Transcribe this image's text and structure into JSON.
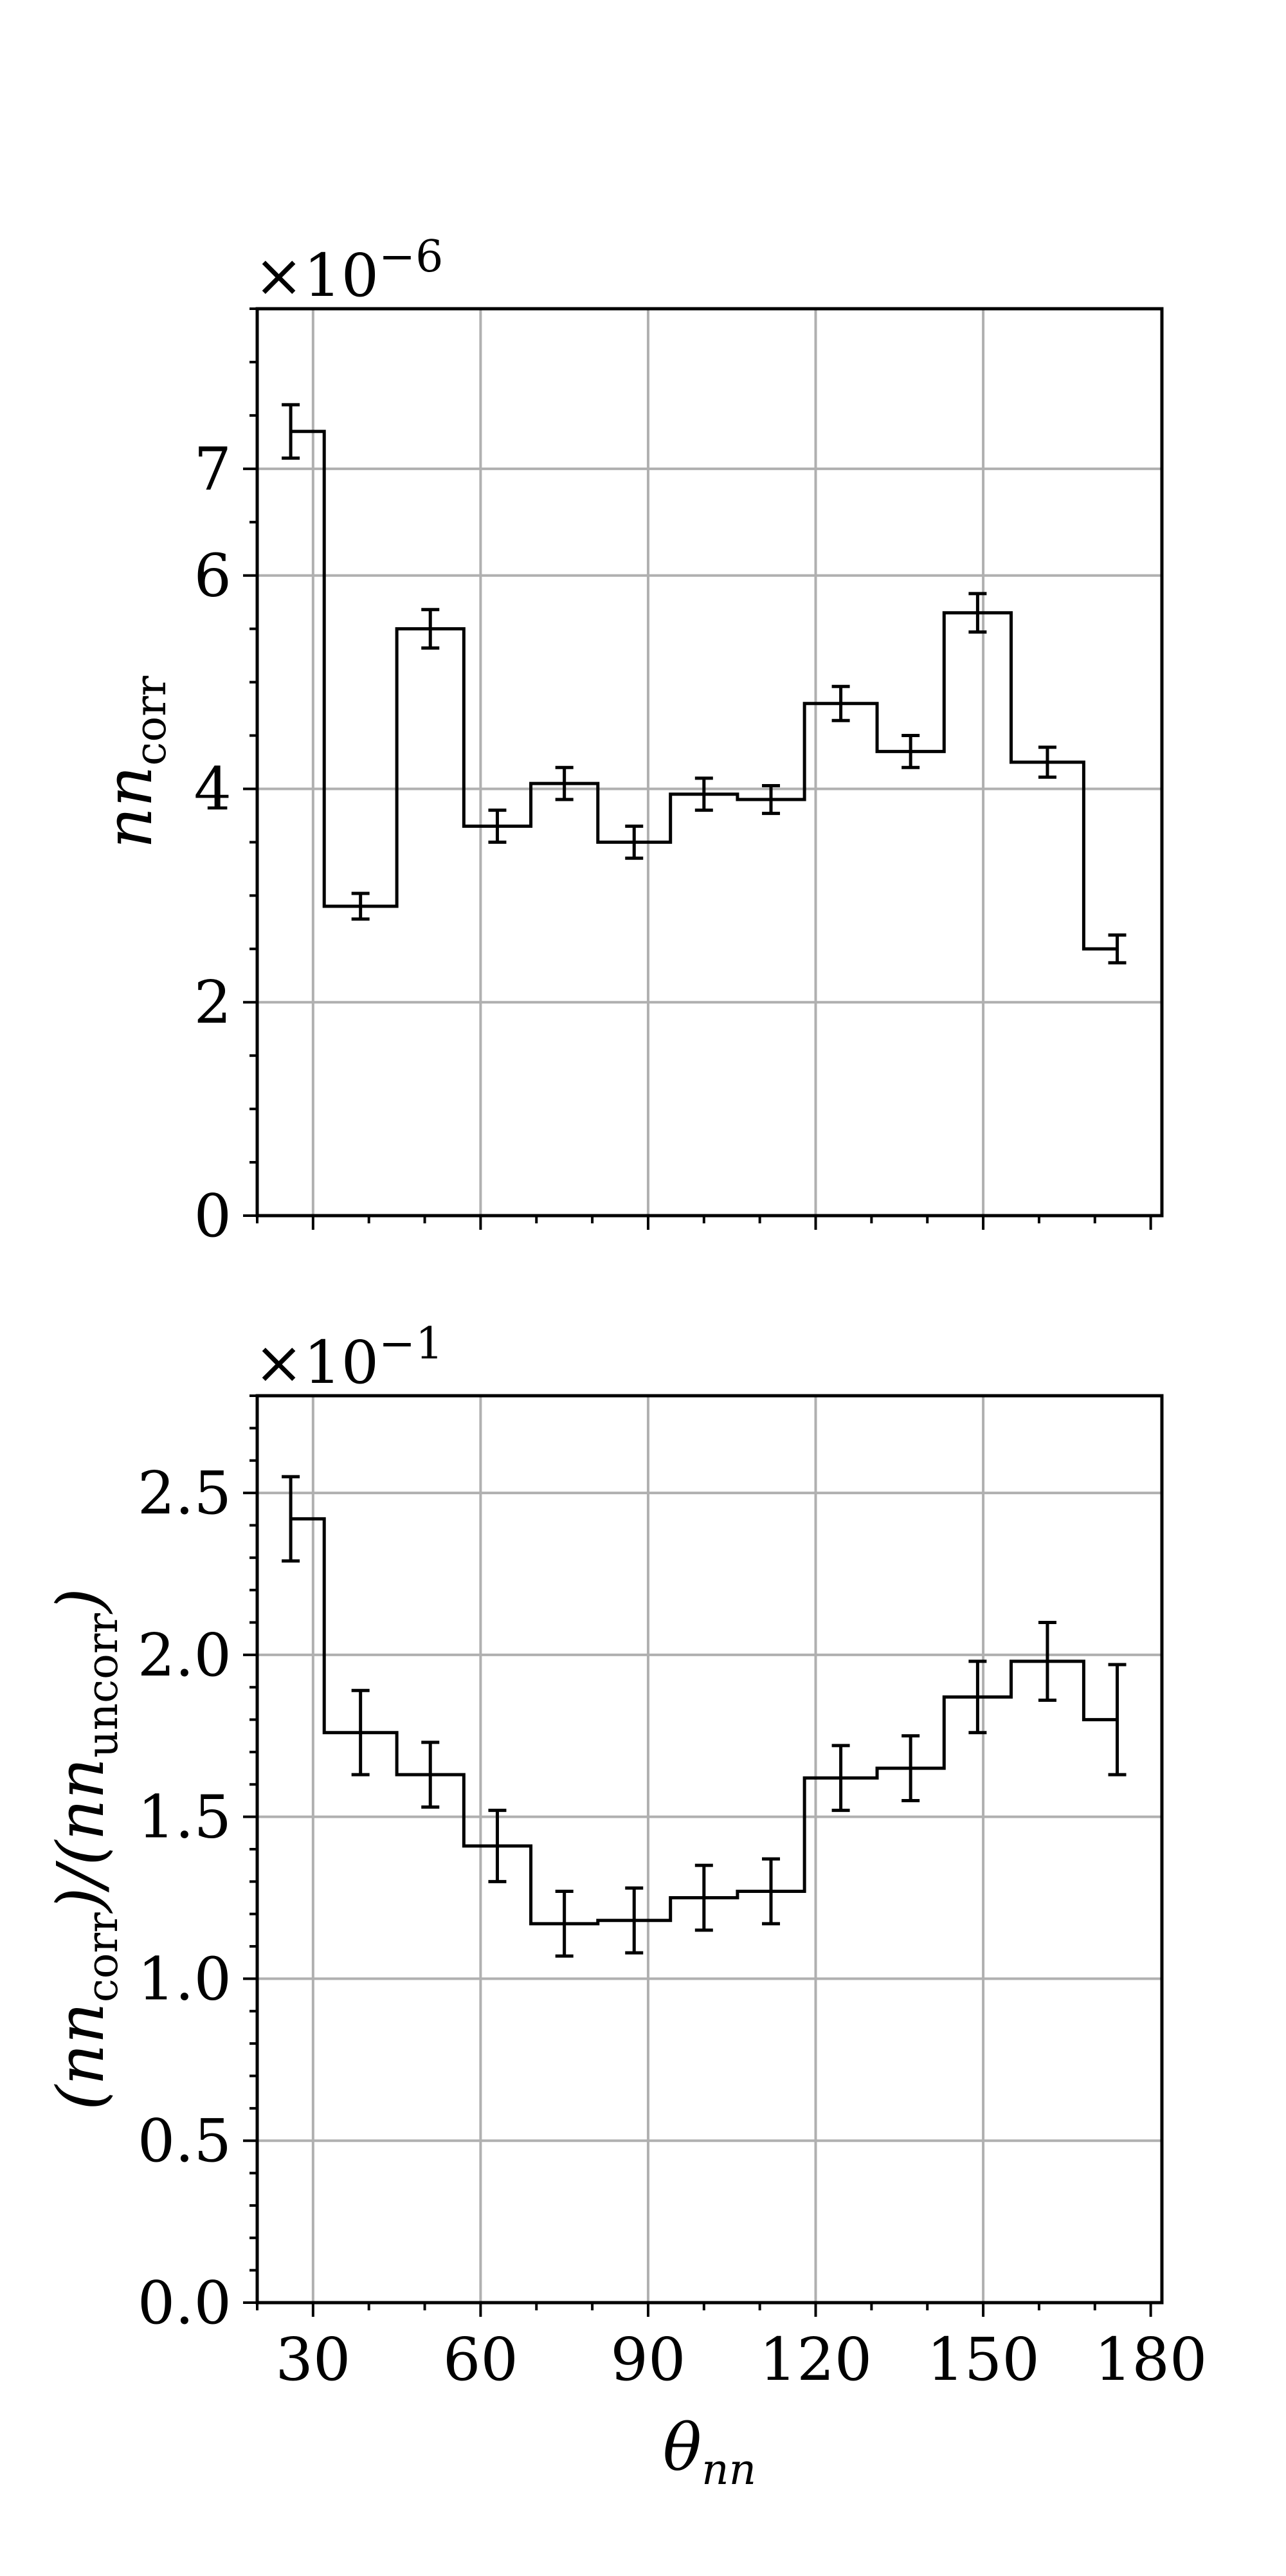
{
  "chart_data": [
    {
      "type": "line",
      "drawstyle": "steps",
      "xlabel": "",
      "ylabel": "nn_corr",
      "ylabel_main": "nn",
      "ylabel_sub": "corr",
      "multiplier_label": "×10",
      "multiplier_exp": "−6",
      "grid": true,
      "xlim": [
        20,
        182
      ],
      "ylim": [
        0,
        8.5
      ],
      "xticks": [
        30,
        60,
        90,
        120,
        150,
        180
      ],
      "yticks": [
        0,
        2,
        4,
        6,
        7
      ],
      "ytick_labels": [
        "0",
        "2",
        "4",
        "6",
        "7"
      ],
      "ygrid": [
        2,
        4,
        6,
        7
      ],
      "bin_edges": [
        26,
        32,
        45,
        57,
        69,
        81,
        94,
        106,
        118,
        131,
        143,
        155,
        168,
        174
      ],
      "x": [
        26,
        38.5,
        51,
        63,
        75,
        87.5,
        100,
        112,
        124.5,
        137,
        149,
        161.5,
        174
      ],
      "values": [
        7.35,
        2.9,
        5.5,
        3.65,
        4.05,
        3.5,
        3.95,
        3.9,
        4.8,
        4.35,
        5.65,
        4.25,
        2.5
      ],
      "errors": [
        0.25,
        0.12,
        0.18,
        0.15,
        0.15,
        0.15,
        0.15,
        0.13,
        0.16,
        0.15,
        0.18,
        0.14,
        0.13
      ]
    },
    {
      "type": "line",
      "drawstyle": "steps",
      "xlabel": "θ_nn",
      "xlabel_main": "θ",
      "xlabel_sub": "nn",
      "ylabel": "(nn_corr)/(nn_uncorr)",
      "ylabel_parts": [
        "(nn",
        "corr",
        ")/(nn",
        "uncorr",
        ")"
      ],
      "multiplier_label": "×10",
      "multiplier_exp": "−1",
      "grid": true,
      "xlim": [
        20,
        182
      ],
      "ylim": [
        0,
        2.8
      ],
      "xticks": [
        30,
        60,
        90,
        120,
        150,
        180
      ],
      "xtick_labels": [
        "30",
        "60",
        "90",
        "120",
        "150",
        "180"
      ],
      "yticks": [
        0,
        0.5,
        1.0,
        1.5,
        2.0,
        2.5
      ],
      "ytick_labels": [
        "0.0",
        "0.5",
        "1.0",
        "1.5",
        "2.0",
        "2.5"
      ],
      "ygrid": [
        0.5,
        1.0,
        1.5,
        2.0,
        2.5
      ],
      "bin_edges": [
        26,
        32,
        45,
        57,
        69,
        81,
        94,
        106,
        118,
        131,
        143,
        155,
        168,
        174
      ],
      "x": [
        26,
        38.5,
        51,
        63,
        75,
        87.5,
        100,
        112,
        124.5,
        137,
        149,
        161.5,
        174
      ],
      "values": [
        2.42,
        1.76,
        1.63,
        1.41,
        1.17,
        1.18,
        1.25,
        1.27,
        1.62,
        1.65,
        1.87,
        1.98,
        1.8
      ],
      "errors": [
        0.13,
        0.13,
        0.1,
        0.11,
        0.1,
        0.1,
        0.1,
        0.1,
        0.1,
        0.1,
        0.11,
        0.12,
        0.17
      ]
    }
  ]
}
